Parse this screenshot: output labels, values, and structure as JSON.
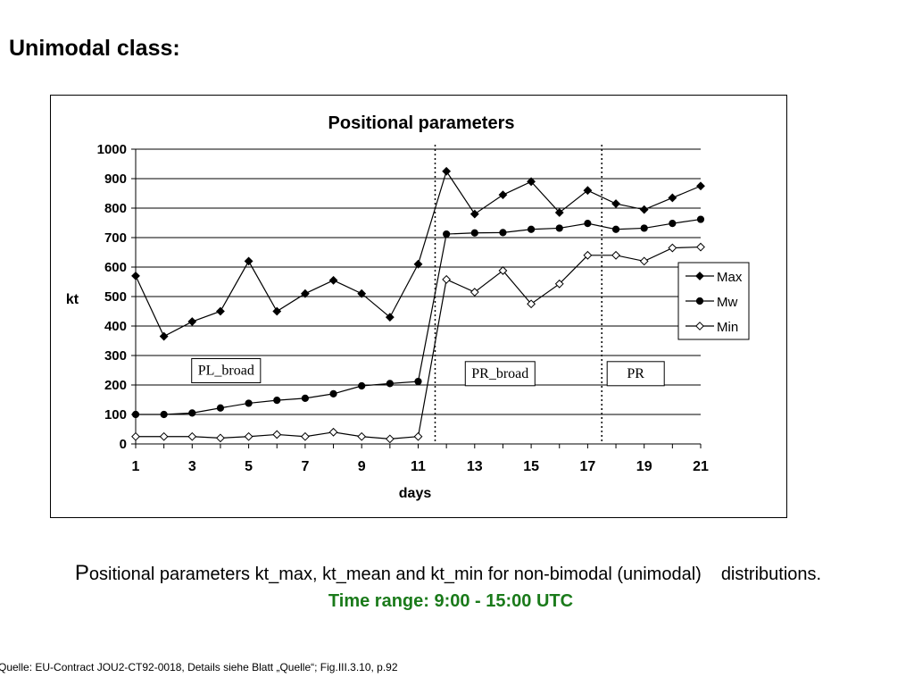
{
  "slide": {
    "title": "Unimodal class:",
    "caption_initial": "P",
    "caption_main": "ositional parameters kt_max, kt_mean and kt_min for non-bimodal (unimodal)",
    "caption_end": "distributions.",
    "time_range": "Time range: 9:00 - 15:00 UTC",
    "source": "Quelle: EU-Contract JOU2-CT92-0018, Details siehe Blatt „Quelle“; Fig.III.3.10, p.92"
  },
  "chart_data": {
    "type": "line",
    "title": "Positional parameters",
    "xlabel": "days",
    "ylabel": "kt",
    "x": [
      1,
      2,
      3,
      4,
      5,
      6,
      7,
      8,
      9,
      10,
      11,
      12,
      13,
      14,
      15,
      16,
      17,
      18,
      19,
      20,
      21
    ],
    "xticks": [
      1,
      3,
      5,
      7,
      9,
      11,
      13,
      15,
      17,
      19,
      21
    ],
    "xticks_labels": [
      "1",
      "3",
      "5",
      "7",
      "9",
      "11",
      "13",
      "15",
      "17",
      "19",
      "21"
    ],
    "xlim": [
      1,
      21
    ],
    "ylim": [
      0,
      1000
    ],
    "yticks": [
      0,
      100,
      200,
      300,
      400,
      500,
      600,
      700,
      800,
      900,
      1000
    ],
    "yticks_labels": [
      "0",
      "100",
      "200",
      "300",
      "400",
      "500",
      "600",
      "700",
      "800",
      "900",
      "1000"
    ],
    "grid": "horizontal",
    "legend_position": "right",
    "series": [
      {
        "name": "Max",
        "marker": "filled-diamond",
        "values": [
          570,
          365,
          415,
          450,
          620,
          450,
          510,
          555,
          510,
          430,
          610,
          925,
          780,
          845,
          890,
          785,
          860,
          815,
          795,
          835,
          875
        ]
      },
      {
        "name": "Mw",
        "marker": "filled-circle",
        "values": [
          100,
          100,
          105,
          122,
          138,
          148,
          155,
          170,
          197,
          205,
          212,
          712,
          716,
          717,
          728,
          732,
          748,
          728,
          732,
          748,
          762
        ]
      },
      {
        "name": "Min",
        "marker": "open-diamond",
        "values": [
          25,
          25,
          25,
          20,
          25,
          32,
          25,
          40,
          25,
          17,
          25,
          558,
          515,
          588,
          475,
          543,
          640,
          640,
          620,
          665,
          668
        ]
      }
    ],
    "dividers": [
      {
        "x": 11.6,
        "style": "dotted"
      },
      {
        "x": 17.5,
        "style": "dotted"
      }
    ],
    "annotations": [
      {
        "text": "PL_broad",
        "x": 4.2,
        "y": 250
      },
      {
        "text": "PR_broad",
        "x": 13.9,
        "y": 240
      },
      {
        "text": "PR",
        "x": 18.7,
        "y": 240
      }
    ]
  }
}
